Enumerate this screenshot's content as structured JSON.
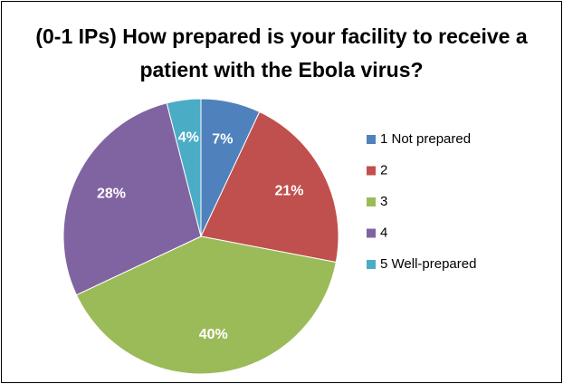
{
  "chart_data": {
    "type": "pie",
    "title": "(0-1 IPs) How prepared is your facility to receive a patient with the Ebola virus?",
    "categories": [
      "1 Not prepared",
      "2",
      "3",
      "4",
      "5 Well-prepared"
    ],
    "values": [
      7,
      21,
      40,
      28,
      4
    ],
    "value_labels": [
      "7%",
      "21%",
      "40%",
      "28%",
      "4%"
    ],
    "colors": [
      "#4f81bd",
      "#c0504d",
      "#9bbb59",
      "#8064a2",
      "#4bacc6"
    ],
    "legend": "right"
  }
}
